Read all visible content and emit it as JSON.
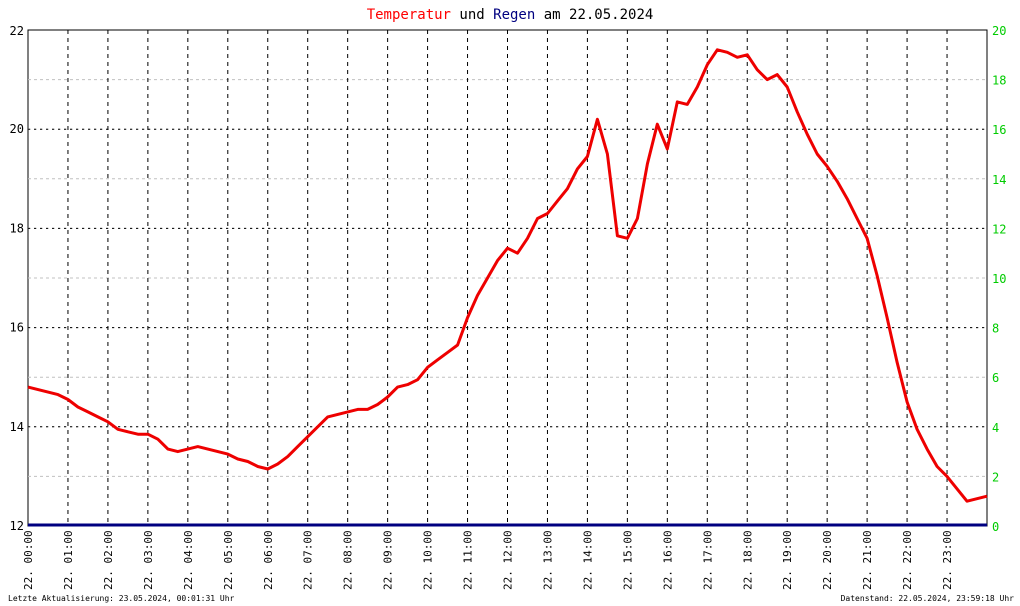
{
  "title": {
    "part1": "Temperatur",
    "part2": " und ",
    "part3": "Regen",
    "part4": " am 22.05.2024",
    "color_temp": "#ff0000",
    "color_rain": "#000080",
    "color_text": "#000000"
  },
  "footer": {
    "left": "Letzte Aktualisierung: 23.05.2024, 00:01:31 Uhr",
    "right": "Datenstand: 22.05.2024, 23:59:18 Uhr"
  },
  "chart_data": {
    "type": "line",
    "x_unit": "hours",
    "xlim": [
      0,
      24
    ],
    "ylim_left": [
      12,
      22
    ],
    "ylim_right": [
      0,
      20
    ],
    "left_ticks": [
      "12",
      "14",
      "16",
      "18",
      "20",
      "22"
    ],
    "right_ticks": [
      "0",
      "2",
      "4",
      "6",
      "8",
      "10",
      "12",
      "14",
      "16",
      "18",
      "20"
    ],
    "x_tick_labels": [
      "22. 00:00",
      "22. 01:00",
      "22. 02:00",
      "22. 03:00",
      "22. 04:00",
      "22. 05:00",
      "22. 06:00",
      "22. 07:00",
      "22. 08:00",
      "22. 09:00",
      "22. 10:00",
      "22. 11:00",
      "22. 12:00",
      "22. 13:00",
      "22. 14:00",
      "22. 15:00",
      "22. 16:00",
      "22. 17:00",
      "22. 18:00",
      "22. 19:00",
      "22. 20:00",
      "22. 21:00",
      "22. 22:00",
      "22. 23:00"
    ],
    "grid": true,
    "right_axis_color": "#00cc00",
    "series": [
      {
        "name": "Temperatur",
        "color": "#ee0000",
        "x": [
          0,
          0.25,
          0.5,
          0.75,
          1.0,
          1.25,
          1.5,
          1.75,
          2.0,
          2.25,
          2.5,
          2.75,
          3.0,
          3.25,
          3.5,
          3.75,
          4.0,
          4.25,
          4.5,
          4.75,
          5.0,
          5.25,
          5.5,
          5.75,
          6.0,
          6.25,
          6.5,
          6.75,
          7.0,
          7.25,
          7.5,
          7.75,
          8.0,
          8.25,
          8.5,
          8.75,
          9.0,
          9.25,
          9.5,
          9.75,
          10.0,
          10.25,
          10.5,
          10.75,
          11.0,
          11.25,
          11.5,
          11.75,
          12.0,
          12.25,
          12.5,
          12.75,
          13.0,
          13.25,
          13.5,
          13.75,
          14.0,
          14.25,
          14.5,
          14.75,
          15.0,
          15.25,
          15.5,
          15.75,
          16.0,
          16.25,
          16.5,
          16.75,
          17.0,
          17.25,
          17.5,
          17.75,
          18.0,
          18.25,
          18.5,
          18.75,
          19.0,
          19.25,
          19.5,
          19.75,
          20.0,
          20.25,
          20.5,
          20.75,
          21.0,
          21.25,
          21.5,
          21.75,
          22.0,
          22.25,
          22.5,
          22.75,
          23.0,
          23.25,
          23.5,
          23.75,
          24.0
        ],
        "values": [
          14.8,
          14.75,
          14.7,
          14.65,
          14.55,
          14.4,
          14.3,
          14.2,
          14.1,
          13.95,
          13.9,
          13.85,
          13.85,
          13.75,
          13.55,
          13.5,
          13.55,
          13.6,
          13.55,
          13.5,
          13.45,
          13.35,
          13.3,
          13.2,
          13.15,
          13.25,
          13.4,
          13.6,
          13.8,
          14.0,
          14.2,
          14.25,
          14.3,
          14.35,
          14.35,
          14.45,
          14.6,
          14.8,
          14.85,
          14.95,
          15.2,
          15.35,
          15.5,
          15.65,
          16.2,
          16.65,
          17.0,
          17.35,
          17.6,
          17.5,
          17.8,
          18.2,
          18.3,
          18.55,
          18.8,
          19.2,
          19.45,
          20.2,
          19.5,
          17.85,
          17.8,
          18.2,
          19.3,
          20.1,
          19.6,
          20.55,
          20.5,
          20.85,
          21.3,
          21.6,
          21.55,
          21.45,
          21.5,
          21.2,
          21.0,
          21.1,
          20.85,
          20.35,
          19.9,
          19.5,
          19.25,
          18.95,
          18.6,
          18.2,
          17.8,
          17.05,
          16.2,
          15.3,
          14.5,
          13.95,
          13.55,
          13.2,
          13.0,
          12.75,
          12.5,
          12.55,
          12.6
        ]
      },
      {
        "name": "Regen",
        "color": "#000080",
        "x": [
          0,
          24
        ],
        "values": [
          0,
          0
        ]
      }
    ]
  }
}
